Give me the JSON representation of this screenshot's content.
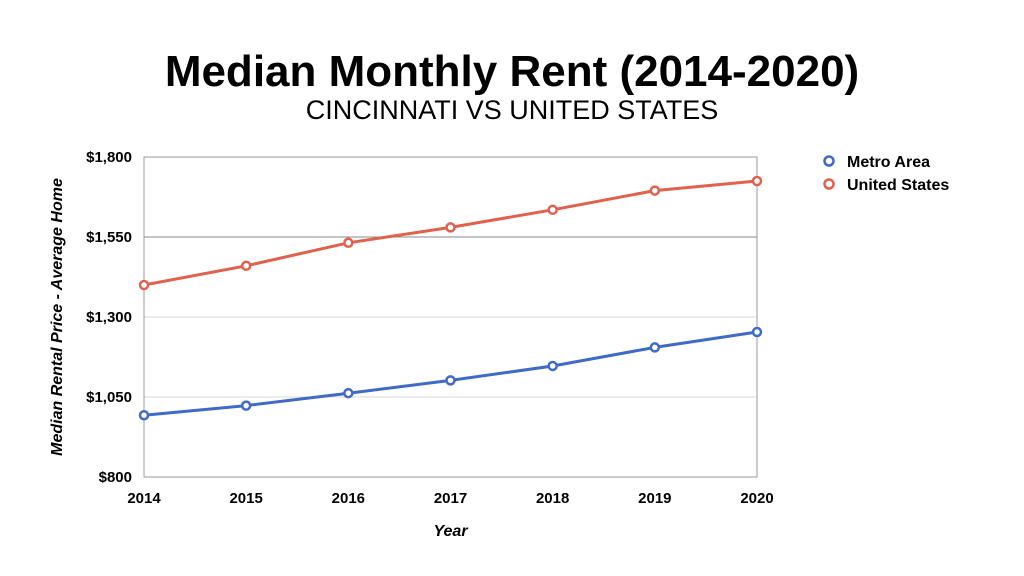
{
  "chart_data": {
    "type": "line",
    "title": "Median Monthly Rent (2014-2020)",
    "subtitle": "CINCINNATI VS UNITED STATES",
    "xlabel": "Year",
    "ylabel": "Median Rental Price - Average Home",
    "x": [
      "2014",
      "2015",
      "2016",
      "2017",
      "2018",
      "2019",
      "2020"
    ],
    "ylim": [
      800,
      1800
    ],
    "yticks": [
      800,
      1050,
      1300,
      1550,
      1800
    ],
    "ytick_labels": [
      "$800",
      "$1,050",
      "$1,300",
      "$1,550",
      "$1,800"
    ],
    "grid": true,
    "legend_position": "top-right",
    "series": [
      {
        "name": "Metro Area",
        "color": "#3f6ac6",
        "values": [
          993,
          1023,
          1062,
          1102,
          1147,
          1205,
          1253
        ]
      },
      {
        "name": "United States",
        "color": "#e0614e",
        "values": [
          1400,
          1460,
          1532,
          1580,
          1635,
          1695,
          1725
        ]
      }
    ]
  }
}
